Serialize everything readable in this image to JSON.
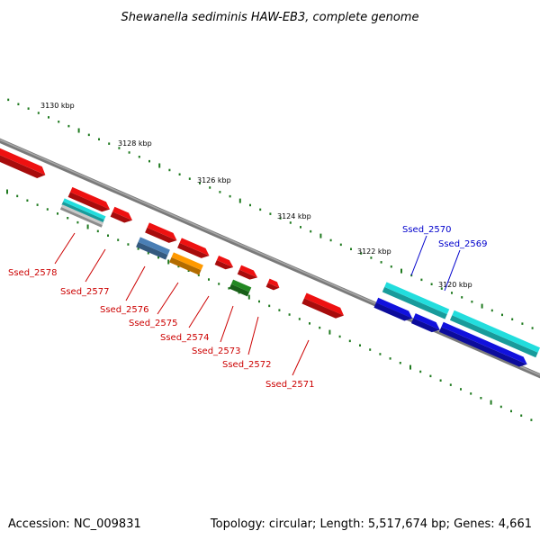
{
  "title": "Shewanella sediminis HAW-EB3, complete genome",
  "footer": {
    "accession": "Accession: NC_009831",
    "summary": "Topology: circular; Length: 5,517,674 bp; Genes: 4,661"
  },
  "colors": {
    "backbone": "#7a7a7a",
    "tick": "#1f7a1f",
    "red": "#ee1111",
    "cyan": "#22dddd",
    "blue": "#1111dd",
    "steelblue": "#4a7fb5",
    "orange": "#ff9900",
    "green": "#228822",
    "gray": "#c8c8c8",
    "label_red": "#cc0000",
    "label_blue": "#0000cc"
  },
  "kbp_labels": [
    "3130 kbp",
    "3128 kbp",
    "3126 kbp",
    "3124 kbp",
    "3122 kbp",
    "3120 kbp"
  ],
  "gene_labels": [
    {
      "text": "Ssed_2578",
      "color": "red"
    },
    {
      "text": "Ssed_2577",
      "color": "red"
    },
    {
      "text": "Ssed_2576",
      "color": "red"
    },
    {
      "text": "Ssed_2575",
      "color": "red"
    },
    {
      "text": "Ssed_2574",
      "color": "red"
    },
    {
      "text": "Ssed_2573",
      "color": "red"
    },
    {
      "text": "Ssed_2572",
      "color": "red"
    },
    {
      "text": "Ssed_2571",
      "color": "red"
    },
    {
      "text": "Ssed_2570",
      "color": "blue"
    },
    {
      "text": "Ssed_2569",
      "color": "blue"
    }
  ]
}
